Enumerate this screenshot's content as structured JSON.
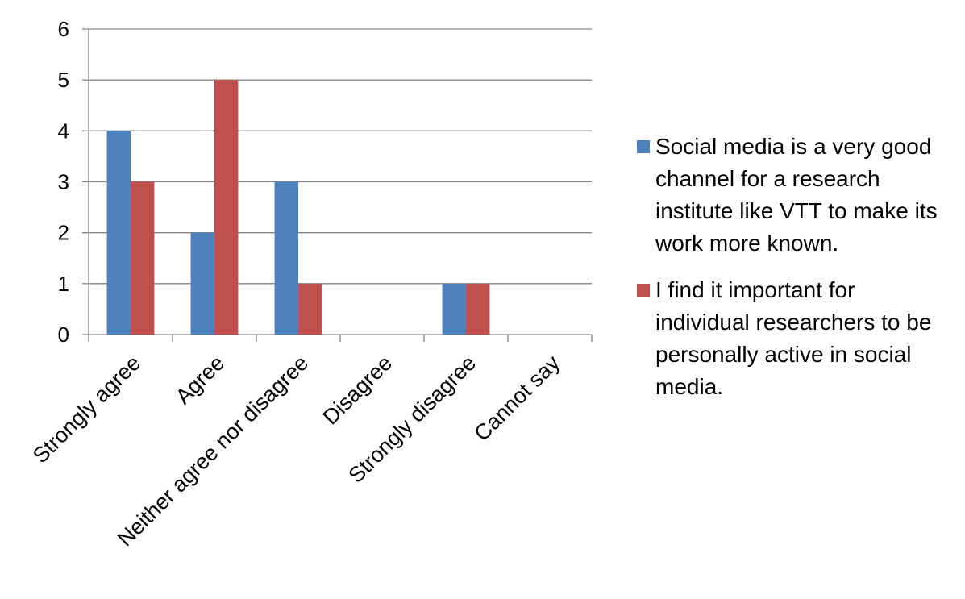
{
  "chart_data": {
    "type": "bar",
    "title": "",
    "xlabel": "",
    "ylabel": "",
    "ylim": [
      0,
      6
    ],
    "yticks": [
      "0",
      "1",
      "2",
      "3",
      "4",
      "5",
      "6"
    ],
    "grid": true,
    "legend_position": "right",
    "categories": [
      "Strongly agree",
      "Agree",
      "Neither agree nor disagree",
      "Disagree",
      "Strongly disagree",
      "Cannot say"
    ],
    "series": [
      {
        "name": "Social media is a very good channel for a research institute like VTT to make its work more known.",
        "color": "#4F81BD",
        "values": [
          4,
          2,
          3,
          0,
          1,
          0
        ]
      },
      {
        "name": "I find it important for individual researchers to be personally active in social media.",
        "color": "#C0504D",
        "values": [
          3,
          5,
          1,
          0,
          1,
          0
        ]
      }
    ]
  }
}
